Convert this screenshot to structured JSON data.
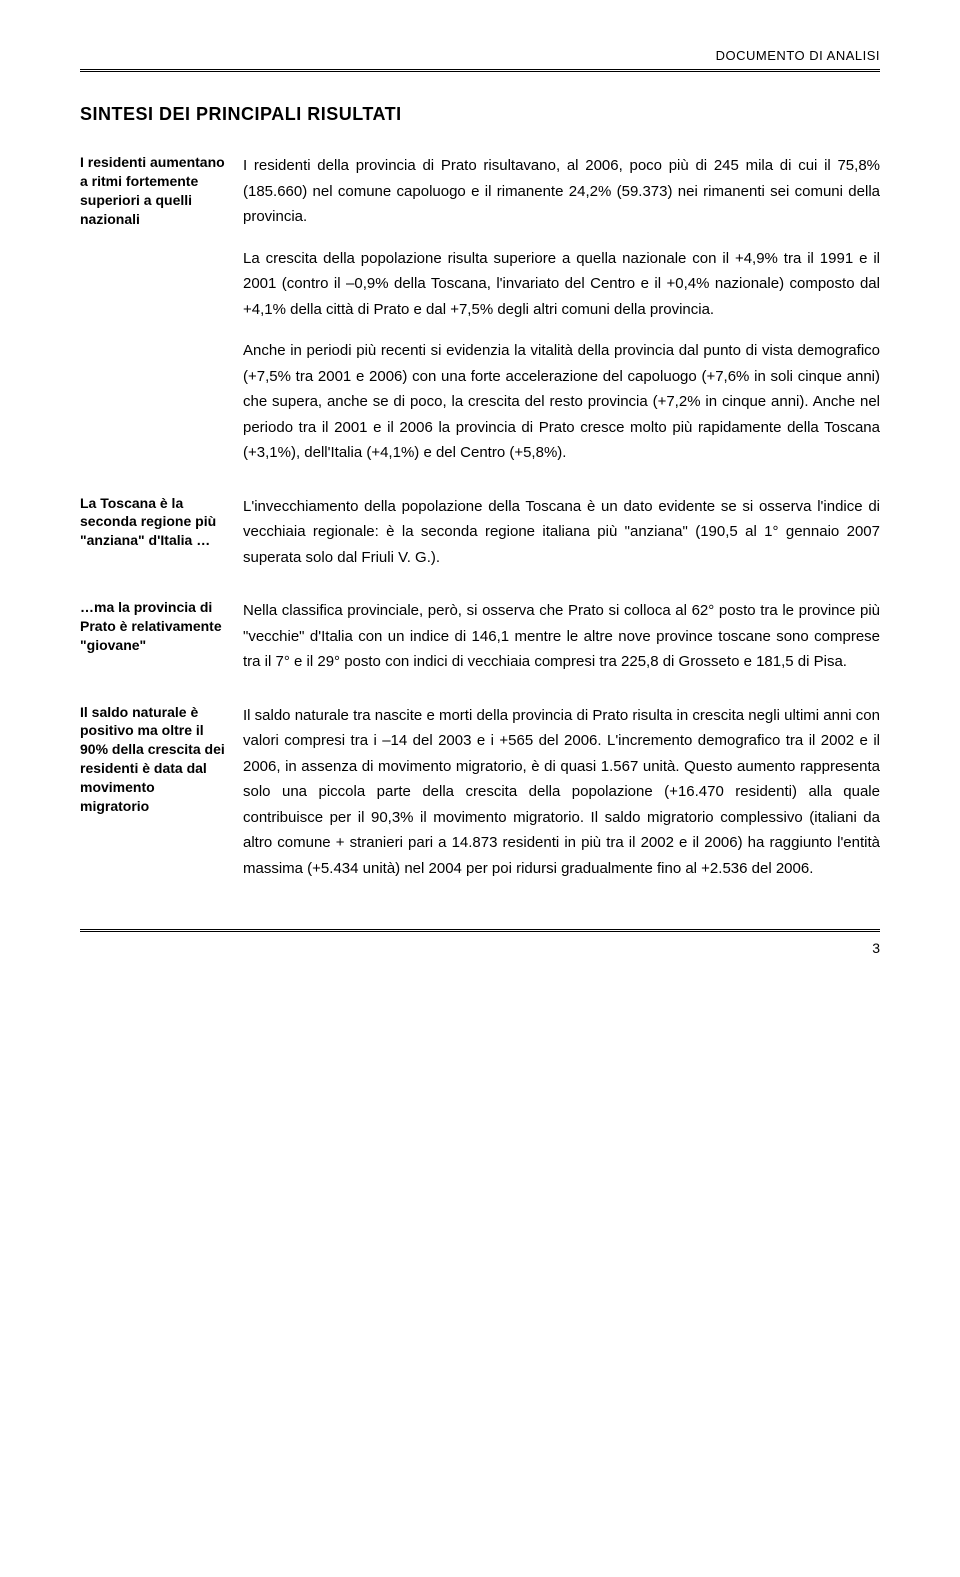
{
  "header": {
    "doc_type": "DOCUMENTO DI ANALISI"
  },
  "title": "SINTESI DEI PRINCIPALI RISULTATI",
  "sections": [
    {
      "note": "I residenti aumentano a ritmi fortemente superiori a quelli nazionali",
      "paragraphs": [
        "I residenti della provincia di Prato risultavano, al 2006, poco più di 245 mila di cui il 75,8% (185.660) nel comune capoluogo e il rimanente 24,2% (59.373) nei rimanenti sei comuni della provincia.",
        "La crescita della popolazione risulta superiore a quella nazionale con il +4,9% tra il 1991 e il 2001 (contro il –0,9% della Toscana, l'invariato del Centro e il +0,4% nazionale) composto dal +4,1% della città di Prato e dal +7,5% degli altri comuni della provincia.",
        "Anche in periodi più recenti si evidenzia la vitalità della provincia dal punto di vista demografico (+7,5% tra 2001 e 2006) con una forte accelerazione del capoluogo (+7,6% in soli cinque anni) che supera, anche se di poco, la crescita del resto provincia (+7,2% in cinque anni). Anche nel periodo tra il 2001 e il 2006 la provincia di Prato cresce molto più rapidamente della Toscana (+3,1%), dell'Italia (+4,1%) e del Centro (+5,8%)."
      ]
    },
    {
      "note": "La Toscana è la seconda regione più \"anziana\" d'Italia …",
      "paragraphs": [
        "L'invecchiamento della popolazione della Toscana è un dato evidente se si osserva l'indice di vecchiaia regionale: è la seconda regione italiana più \"anziana\" (190,5 al 1° gennaio 2007 superata solo dal Friuli V. G.)."
      ]
    },
    {
      "note": "…ma la provincia di Prato è relativamente \"giovane\"",
      "paragraphs": [
        "Nella classifica provinciale, però, si osserva che Prato si colloca al 62° posto tra le province più \"vecchie\" d'Italia con un indice di 146,1 mentre le altre nove province toscane sono comprese tra il 7° e il 29° posto con indici di vecchiaia compresi tra 225,8 di Grosseto e 181,5 di Pisa."
      ]
    },
    {
      "note": "Il saldo naturale è positivo ma oltre il 90% della crescita dei residenti è data dal movimento migratorio",
      "paragraphs": [
        "Il saldo naturale tra nascite e morti della provincia di Prato risulta in crescita negli ultimi anni con valori compresi tra i –14 del 2003 e i +565 del 2006. L'incremento demografico tra il 2002 e il 2006, in assenza di movimento migratorio, è di quasi 1.567 unità. Questo aumento rappresenta solo una piccola parte della crescita della popolazione (+16.470 residenti) alla quale contribuisce per il 90,3% il movimento migratorio. Il saldo migratorio complessivo (italiani da altro comune + stranieri pari a 14.873 residenti in più tra il 2002 e il 2006) ha raggiunto l'entità massima (+5.434 unità) nel 2004 per poi ridursi gradualmente fino al +2.536 del 2006."
      ]
    }
  ],
  "page_number": "3"
}
